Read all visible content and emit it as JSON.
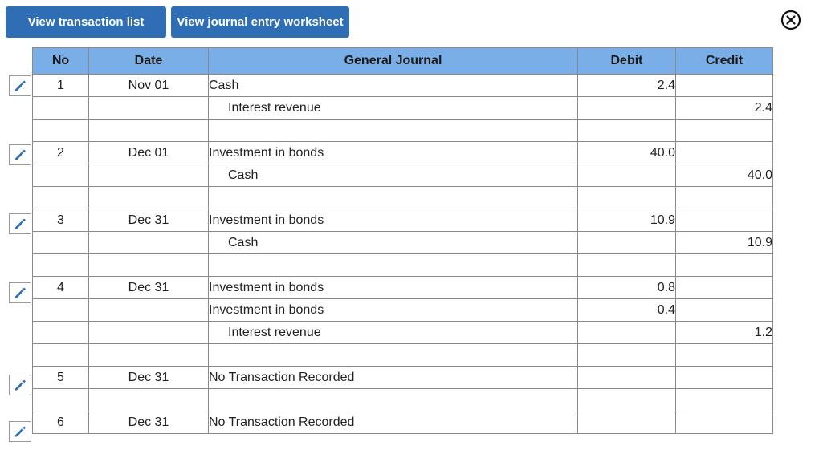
{
  "toolbar": {
    "view_transaction_list": "View transaction list",
    "view_journal_worksheet": "View journal entry worksheet"
  },
  "icons": {
    "close": "close-icon",
    "edit": "pencil-icon"
  },
  "colors": {
    "button_bg": "#2f6eb5",
    "header_bg": "#7aaee6",
    "icon_blue": "#2f6eb5"
  },
  "table": {
    "headers": {
      "no": "No",
      "date": "Date",
      "account": "General Journal",
      "debit": "Debit",
      "credit": "Credit"
    },
    "rows": [
      {
        "no": "1",
        "date": "Nov 01",
        "account": "Cash",
        "debit": "2.4",
        "credit": "",
        "indent": false,
        "edit": true
      },
      {
        "no": "",
        "date": "",
        "account": "Interest revenue",
        "debit": "",
        "credit": "2.4",
        "indent": true,
        "edit": false
      },
      {
        "no": "",
        "date": "",
        "account": "",
        "debit": "",
        "credit": "",
        "indent": false,
        "edit": false
      },
      {
        "no": "2",
        "date": "Dec 01",
        "account": "Investment in bonds",
        "debit": "40.0",
        "credit": "",
        "indent": false,
        "edit": true
      },
      {
        "no": "",
        "date": "",
        "account": "Cash",
        "debit": "",
        "credit": "40.0",
        "indent": true,
        "edit": false
      },
      {
        "no": "",
        "date": "",
        "account": "",
        "debit": "",
        "credit": "",
        "indent": false,
        "edit": false
      },
      {
        "no": "3",
        "date": "Dec 31",
        "account": "Investment in bonds",
        "debit": "10.9",
        "credit": "",
        "indent": false,
        "edit": true
      },
      {
        "no": "",
        "date": "",
        "account": "Cash",
        "debit": "",
        "credit": "10.9",
        "indent": true,
        "edit": false
      },
      {
        "no": "",
        "date": "",
        "account": "",
        "debit": "",
        "credit": "",
        "indent": false,
        "edit": false
      },
      {
        "no": "4",
        "date": "Dec 31",
        "account": "Investment in bonds",
        "debit": "0.8",
        "credit": "",
        "indent": false,
        "edit": true
      },
      {
        "no": "",
        "date": "",
        "account": "Investment in bonds",
        "debit": "0.4",
        "credit": "",
        "indent": false,
        "edit": false
      },
      {
        "no": "",
        "date": "",
        "account": "Interest revenue",
        "debit": "",
        "credit": "1.2",
        "indent": true,
        "edit": false
      },
      {
        "no": "",
        "date": "",
        "account": "",
        "debit": "",
        "credit": "",
        "indent": false,
        "edit": false
      },
      {
        "no": "5",
        "date": "Dec 31",
        "account": "No Transaction Recorded",
        "debit": "",
        "credit": "",
        "indent": false,
        "edit": true
      },
      {
        "no": "",
        "date": "",
        "account": "",
        "debit": "",
        "credit": "",
        "indent": false,
        "edit": false
      },
      {
        "no": "6",
        "date": "Dec 31",
        "account": "No Transaction Recorded",
        "debit": "",
        "credit": "",
        "indent": false,
        "edit": true
      }
    ]
  }
}
